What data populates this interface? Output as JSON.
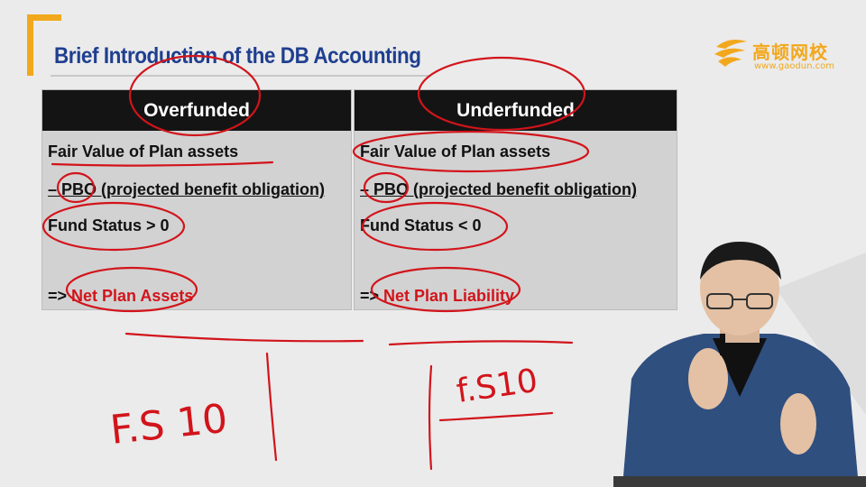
{
  "slide": {
    "title": "Brief Introduction of the DB Accounting",
    "logo_cn": "高顿网校",
    "logo_url": "www.gaodun.com"
  },
  "table": {
    "left": {
      "header": "Overfunded",
      "row1": "Fair Value of Plan assets",
      "row2": "– PBO (projected benefit obligation)",
      "row3": "Fund Status > 0",
      "row4_prefix": "=> ",
      "row4_value": "Net Plan Assets"
    },
    "right": {
      "header": "Underfunded",
      "row1": "Fair Value of Plan assets",
      "row2": "– PBO (projected benefit obligation)",
      "row3": "Fund Status < 0",
      "row4_prefix": "=> ",
      "row4_value": "Net Plan Liability"
    }
  },
  "handwriting": {
    "left_note": "F.S 10",
    "right_note": "f.S10"
  },
  "colors": {
    "title": "#1f3f8f",
    "accent_orange": "#f2a81d",
    "highlight_red": "#d2141b",
    "header_bg": "#141414",
    "cell_bg": "#d2d2d2"
  }
}
